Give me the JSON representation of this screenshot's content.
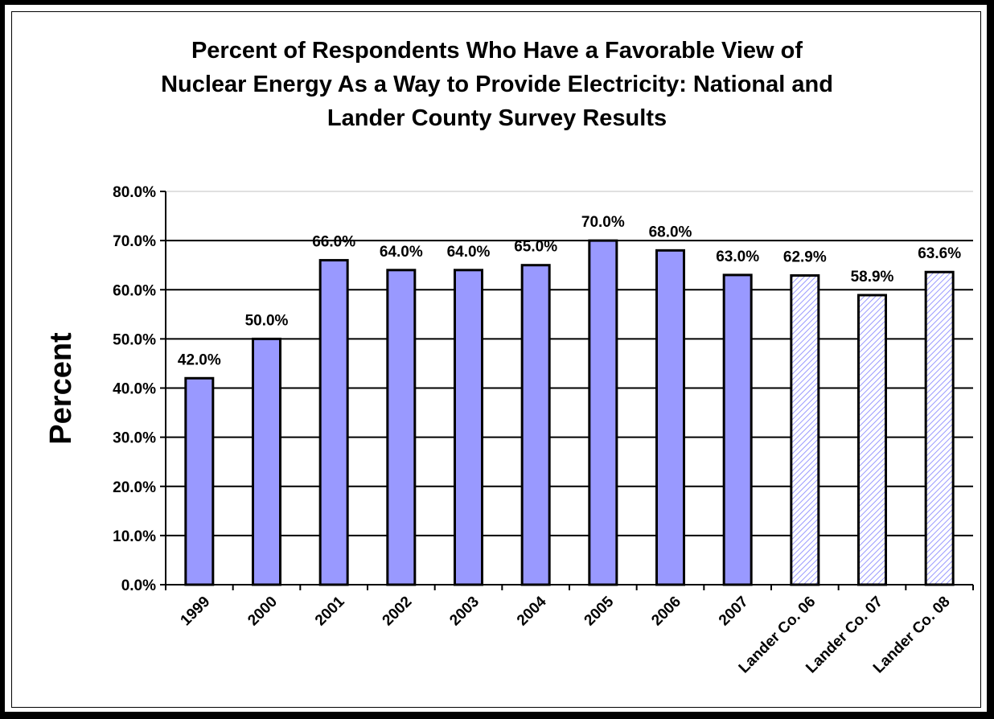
{
  "chart_data": {
    "type": "bar",
    "title_lines": [
      "Percent of Respondents Who Have a Favorable View of",
      "Nuclear Energy As a Way to Provide Electricity: National and",
      "Lander County Survey Results"
    ],
    "ylabel": "Percent",
    "xlabel": "",
    "ylim": [
      0,
      80
    ],
    "yticks": [
      "0.0%",
      "10.0%",
      "20.0%",
      "30.0%",
      "40.0%",
      "50.0%",
      "60.0%",
      "70.0%",
      "80.0%"
    ],
    "categories": [
      "1999",
      "2000",
      "2001",
      "2002",
      "2003",
      "2004",
      "2005",
      "2006",
      "2007",
      "Lander Co. 06",
      "Lander Co. 07",
      "Lander Co. 08"
    ],
    "values": [
      42.0,
      50.0,
      66.0,
      64.0,
      64.0,
      65.0,
      70.0,
      68.0,
      63.0,
      62.9,
      58.9,
      63.6
    ],
    "data_labels": [
      "42.0%",
      "50.0%",
      "66.0%",
      "64.0%",
      "64.0%",
      "65.0%",
      "70.0%",
      "68.0%",
      "63.0%",
      "62.9%",
      "58.9%",
      "63.6%"
    ],
    "bar_style": [
      "solid",
      "solid",
      "solid",
      "solid",
      "solid",
      "solid",
      "solid",
      "solid",
      "solid",
      "hatched",
      "hatched",
      "hatched"
    ],
    "grid": true,
    "legend": "none",
    "colors": {
      "bar_fill": "#9999ff",
      "hatch_line": "#9999ff",
      "hatch_bg": "#ffffff",
      "bar_outline": "#000000",
      "gridline": "#000000",
      "top_gridline": "#c0c0c0"
    }
  }
}
